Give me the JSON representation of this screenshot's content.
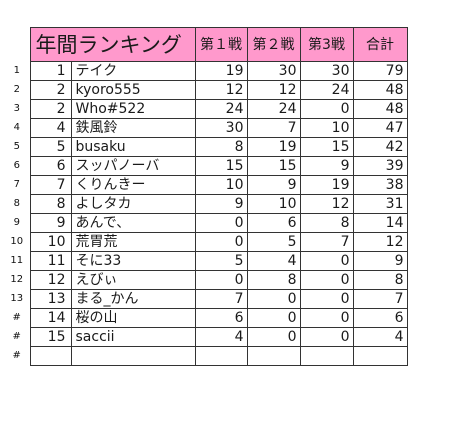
{
  "header": {
    "title": "年間ランキング",
    "round1": "第１戦",
    "round2": "第２戦",
    "round3": "第3戦",
    "total": "合計"
  },
  "rows": [
    {
      "rownum": "1",
      "rank": "1",
      "name": "テイク",
      "r1": "19",
      "r2": "30",
      "r3": "30",
      "total": "79"
    },
    {
      "rownum": "2",
      "rank": "2",
      "name": "kyoro555",
      "r1": "12",
      "r2": "12",
      "r3": "24",
      "total": "48"
    },
    {
      "rownum": "3",
      "rank": "2",
      "name": "Who#522",
      "r1": "24",
      "r2": "24",
      "r3": "0",
      "total": "48"
    },
    {
      "rownum": "4",
      "rank": "4",
      "name": "鉄風鈴",
      "r1": "30",
      "r2": "7",
      "r3": "10",
      "total": "47"
    },
    {
      "rownum": "5",
      "rank": "5",
      "name": "busaku",
      "r1": "8",
      "r2": "19",
      "r3": "15",
      "total": "42"
    },
    {
      "rownum": "6",
      "rank": "6",
      "name": "スッパノーバ",
      "r1": "15",
      "r2": "15",
      "r3": "9",
      "total": "39"
    },
    {
      "rownum": "7",
      "rank": "7",
      "name": "くりんきー",
      "r1": "10",
      "r2": "9",
      "r3": "19",
      "total": "38"
    },
    {
      "rownum": "8",
      "rank": "8",
      "name": "よしタカ",
      "r1": "9",
      "r2": "10",
      "r3": "12",
      "total": "31"
    },
    {
      "rownum": "9",
      "rank": "9",
      "name": "あんで、",
      "r1": "0",
      "r2": "6",
      "r3": "8",
      "total": "14"
    },
    {
      "rownum": "10",
      "rank": "10",
      "name": "荒胃荒",
      "r1": "0",
      "r2": "5",
      "r3": "7",
      "total": "12"
    },
    {
      "rownum": "11",
      "rank": "11",
      "name": "そに33",
      "r1": "5",
      "r2": "4",
      "r3": "0",
      "total": "9"
    },
    {
      "rownum": "12",
      "rank": "12",
      "name": "えびぃ",
      "r1": "0",
      "r2": "8",
      "r3": "0",
      "total": "8"
    },
    {
      "rownum": "13",
      "rank": "13",
      "name": "まる_かん",
      "r1": "7",
      "r2": "0",
      "r3": "0",
      "total": "7"
    },
    {
      "rownum": "#",
      "rank": "14",
      "name": "桜の山",
      "r1": "6",
      "r2": "0",
      "r3": "0",
      "total": "6"
    },
    {
      "rownum": "#",
      "rank": "15",
      "name": "saccii",
      "r1": "4",
      "r2": "0",
      "r3": "0",
      "total": "4"
    },
    {
      "rownum": "#",
      "rank": "",
      "name": "",
      "r1": "",
      "r2": "",
      "r3": "",
      "total": ""
    }
  ]
}
